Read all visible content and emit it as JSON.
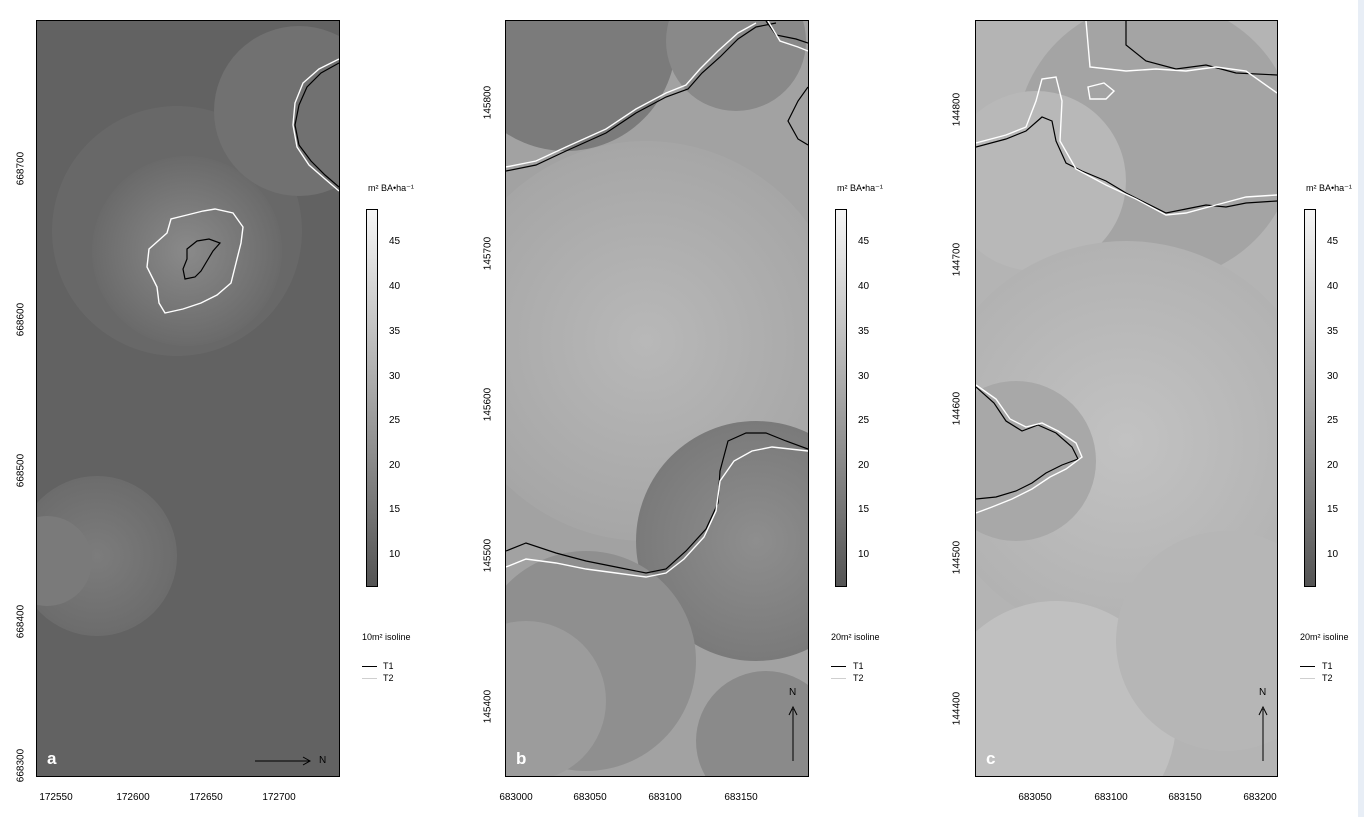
{
  "legend_unit": "m² BA•ha⁻¹",
  "colorbar_ticks": [
    "45",
    "40",
    "35",
    "30",
    "25",
    "20",
    "15",
    "10"
  ],
  "isoline_legend": {
    "series": [
      "T1",
      "T2"
    ],
    "colors": {
      "T1": "#000000",
      "T2": "#ffffff"
    }
  },
  "north_label": "N",
  "panels": [
    {
      "letter": "a",
      "isoline_title": "10m² isoline",
      "y_ticks": [
        "668700",
        "668600",
        "668500",
        "668400",
        "668300"
      ],
      "x_ticks": [
        "172550",
        "172600",
        "172650",
        "172700"
      ]
    },
    {
      "letter": "b",
      "isoline_title": "20m² isoline",
      "y_ticks": [
        "145800",
        "145700",
        "145600",
        "145500",
        "145400"
      ],
      "x_ticks": [
        "683000",
        "683050",
        "683100",
        "683150"
      ]
    },
    {
      "letter": "c",
      "isoline_title": "20m² isoline",
      "y_ticks": [
        "144800",
        "144700",
        "144600",
        "144500",
        "144400"
      ],
      "x_ticks": [
        "683050",
        "683100",
        "683150",
        "683200"
      ]
    }
  ]
}
